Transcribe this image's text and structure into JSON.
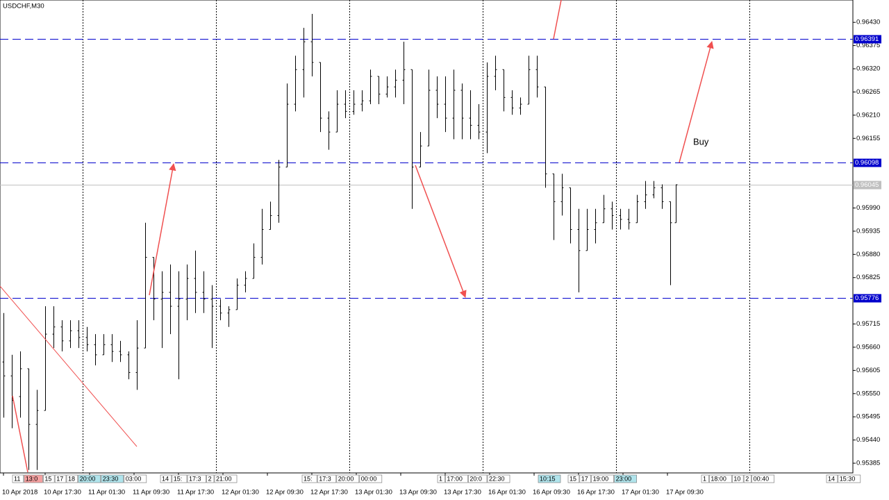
{
  "chart_data": {
    "type": "ohlc",
    "title": "USDCHF,M30",
    "color": "#000000",
    "x": [
      0,
      3,
      6,
      9,
      12,
      15,
      18,
      21,
      24,
      27,
      30,
      33,
      36,
      39,
      42,
      45,
      48,
      51,
      54,
      57,
      60,
      63,
      66,
      69,
      72,
      75,
      78,
      81,
      84,
      87,
      90,
      93,
      96,
      99,
      102,
      105,
      108,
      111,
      114,
      117,
      120,
      123,
      126,
      129,
      132,
      135,
      138,
      141,
      144,
      147,
      150,
      153,
      156,
      159,
      162,
      165,
      168,
      171,
      174,
      177,
      180,
      183,
      186,
      189,
      192,
      195,
      198,
      201,
      204,
      207,
      210,
      213,
      216,
      219,
      222,
      225,
      228,
      231,
      234,
      237,
      240,
      242
    ],
    "open": [
      0.95625,
      0.95592,
      0.95543,
      0.95609,
      0.95477,
      0.9551,
      0.95691,
      0.95708,
      0.95675,
      0.95699,
      0.95683,
      0.95666,
      0.95642,
      0.95666,
      0.9565,
      0.95642,
      0.956,
      0.95658,
      0.95873,
      0.95774,
      0.9579,
      0.95757,
      0.95774,
      0.95823,
      0.9579,
      0.95774,
      0.95757,
      0.95741,
      0.95749,
      0.95807,
      0.95823,
      0.95873,
      0.95939,
      0.95972,
      0.96087,
      0.96236,
      0.96318,
      0.96384,
      0.96335,
      0.96203,
      0.9617,
      0.96236,
      0.96219,
      0.96236,
      0.96244,
      0.96302,
      0.9626,
      0.96277,
      0.96293,
      0.96318,
      0.96087,
      0.96137,
      0.96269,
      0.96236,
      0.96203,
      0.96269,
      0.96203,
      0.96186,
      0.9617,
      0.96302,
      0.96318,
      0.96252,
      0.96227,
      0.96236,
      0.96318,
      0.96277,
      0.96071,
      0.96005,
      0.96038,
      0.95939,
      0.95889,
      0.95939,
      0.95955,
      0.95988,
      0.95972,
      0.95963,
      0.95955,
      0.96005,
      0.96021,
      0.96038,
      0.96005,
      0.95955
    ],
    "high": [
      0.95741,
      0.95642,
      0.9565,
      0.95609,
      0.95559,
      0.95757,
      0.95757,
      0.95724,
      0.95724,
      0.95724,
      0.95708,
      0.95691,
      0.95691,
      0.95691,
      0.95675,
      0.9565,
      0.95724,
      0.95955,
      0.95873,
      0.9584,
      0.95856,
      0.9584,
      0.95856,
      0.95889,
      0.9584,
      0.95807,
      0.95774,
      0.95757,
      0.95823,
      0.9584,
      0.95906,
      0.95988,
      0.96005,
      0.96104,
      0.96285,
      0.96351,
      0.96417,
      0.9645,
      0.96335,
      0.96219,
      0.96269,
      0.96269,
      0.96269,
      0.96269,
      0.96318,
      0.96302,
      0.96302,
      0.96318,
      0.96384,
      0.96318,
      0.9617,
      0.96318,
      0.96302,
      0.96302,
      0.96318,
      0.96285,
      0.96269,
      0.96236,
      0.96335,
      0.96351,
      0.96318,
      0.96269,
      0.96252,
      0.96351,
      0.96351,
      0.96277,
      0.96071,
      0.96071,
      0.96038,
      0.95988,
      0.95988,
      0.95988,
      0.96021,
      0.96005,
      0.95988,
      0.95988,
      0.96021,
      0.96054,
      0.96054,
      0.96046,
      0.96005,
      0.96046
    ],
    "low": [
      0.95493,
      0.95468,
      0.95493,
      0.95369,
      0.95369,
      0.9551,
      0.95658,
      0.9565,
      0.95658,
      0.95658,
      0.9565,
      0.95617,
      0.95642,
      0.95625,
      0.95625,
      0.95584,
      0.95559,
      0.95658,
      0.95724,
      0.95658,
      0.95691,
      0.95584,
      0.95724,
      0.95741,
      0.95741,
      0.95658,
      0.95724,
      0.95708,
      0.95749,
      0.9579,
      0.95823,
      0.95856,
      0.95939,
      0.95955,
      0.96087,
      0.96219,
      0.96252,
      0.96302,
      0.9617,
      0.96128,
      0.9617,
      0.96203,
      0.96211,
      0.96219,
      0.96236,
      0.96236,
      0.96252,
      0.96252,
      0.96236,
      0.95988,
      0.96087,
      0.96137,
      0.96203,
      0.9617,
      0.96153,
      0.96153,
      0.96153,
      0.96153,
      0.9612,
      0.96269,
      0.96219,
      0.96211,
      0.96211,
      0.96236,
      0.96252,
      0.96038,
      0.95914,
      0.95972,
      0.95906,
      0.9579,
      0.95889,
      0.95906,
      0.95955,
      0.95939,
      0.95939,
      0.95939,
      0.95955,
      0.95988,
      0.96013,
      0.95988,
      0.95807,
      0.95955
    ],
    "close": [
      0.95592,
      0.95534,
      0.95609,
      0.95477,
      0.9551,
      0.95691,
      0.95708,
      0.95675,
      0.95699,
      0.95683,
      0.95666,
      0.95642,
      0.95666,
      0.9565,
      0.95642,
      0.956,
      0.95658,
      0.95873,
      0.95774,
      0.9579,
      0.95757,
      0.95774,
      0.95823,
      0.9579,
      0.95774,
      0.95757,
      0.95741,
      0.95749,
      0.95807,
      0.95823,
      0.95873,
      0.95939,
      0.95972,
      0.96087,
      0.96236,
      0.96318,
      0.96384,
      0.96335,
      0.96203,
      0.9617,
      0.96236,
      0.96219,
      0.96236,
      0.96244,
      0.96302,
      0.9626,
      0.96277,
      0.96293,
      0.96318,
      0.96087,
      0.96137,
      0.96269,
      0.96236,
      0.96203,
      0.96269,
      0.96203,
      0.96186,
      0.9617,
      0.96302,
      0.96318,
      0.96252,
      0.96227,
      0.96236,
      0.96318,
      0.96277,
      0.96071,
      0.96005,
      0.96038,
      0.95939,
      0.95889,
      0.95939,
      0.95955,
      0.95988,
      0.95972,
      0.95963,
      0.95955,
      0.96005,
      0.96021,
      0.96038,
      0.96005,
      0.95955,
      0.96045
    ],
    "xlim": [
      -1.25,
      305.75
    ],
    "xticks": [
      {
        "value": 0,
        "label": "10 Apr 2018"
      },
      {
        "value": 15,
        "label": "10 Apr 17:30"
      },
      {
        "value": 31,
        "label": "11 Apr 01:30"
      },
      {
        "value": 47,
        "label": "11 Apr 09:30"
      },
      {
        "value": 63,
        "label": "11 Apr 17:30"
      },
      {
        "value": 79,
        "label": "12 Apr 01:30"
      },
      {
        "value": 95,
        "label": "12 Apr 09:30"
      },
      {
        "value": 111,
        "label": "12 Apr 17:30"
      },
      {
        "value": 127,
        "label": "13 Apr 01:30"
      },
      {
        "value": 143,
        "label": "13 Apr 09:30"
      },
      {
        "value": 159,
        "label": "13 Apr 17:30"
      },
      {
        "value": 175,
        "label": "16 Apr 01:30"
      },
      {
        "value": 191,
        "label": "16 Apr 09:30"
      },
      {
        "value": 207,
        "label": "16 Apr 17:30"
      },
      {
        "value": 223,
        "label": "17 Apr 01:30"
      },
      {
        "value": 239,
        "label": "17 Apr 09:30"
      }
    ],
    "separators": [
      28.5,
      76.5,
      124.5,
      172.5,
      220.5,
      268.5
    ],
    "ylim": [
      0.95362,
      0.96483
    ],
    "yticks": [
      {
        "value": 0.9643,
        "label": "0.96430"
      },
      0.96375,
      {
        "value": 0.9632,
        "label": "0.96320"
      },
      0.96265,
      {
        "value": 0.9621,
        "label": "0.96210"
      },
      0.96155,
      {
        "value": 0.9599,
        "label": "0.95990"
      },
      0.95935,
      {
        "value": 0.9588,
        "label": "0.95880"
      },
      0.95825,
      0.95715,
      {
        "value": 0.9566,
        "label": "0.95660"
      },
      0.95605,
      {
        "value": 0.9555,
        "label": "0.95550"
      },
      0.95495,
      {
        "value": 0.9544,
        "label": "0.95440"
      },
      0.95385
    ],
    "levels": [
      0.96391,
      0.96098,
      0.95776
    ],
    "level_color": "#0000cc",
    "current_price": 0.96045,
    "current_color": "#c0c0c0",
    "annotations": [
      {
        "text": "Buy",
        "color": "#e04040"
      }
    ],
    "time_tags": [
      {
        "text": "11"
      },
      {
        "text": "13:0",
        "color": "#f4a0a0"
      },
      {
        "text": "15"
      },
      {
        "text": "17"
      },
      {
        "text": "18"
      },
      {
        "text": "20:00",
        "color": "#b0e4ec"
      },
      {
        "text": "23:30",
        "color": "#b0e4ec"
      },
      {
        "text": "03:00"
      },
      {
        "text": "14"
      },
      {
        "text": "15:"
      },
      {
        "text": "17:3"
      },
      {
        "text": "2"
      },
      {
        "text": "21:00"
      },
      {
        "text": "15:"
      },
      {
        "text": "17:3"
      },
      {
        "text": "20:00"
      },
      {
        "text": "00:00"
      },
      {
        "text": "1"
      },
      {
        "text": "17:00"
      },
      {
        "text": "20:0"
      },
      {
        "text": "22:30"
      },
      {
        "text": "10:15",
        "color": "#b0e4ec"
      },
      {
        "text": "15"
      },
      {
        "text": "17"
      },
      {
        "text": "19:00"
      },
      {
        "text": "23:00",
        "color": "#b0e4ec"
      },
      {
        "text": "1"
      },
      {
        "text": "18:00"
      },
      {
        "text": "10"
      },
      {
        "text": "2"
      },
      {
        "text": "00:40"
      },
      {
        "text": "14"
      },
      {
        "text": "15:30"
      }
    ]
  }
}
